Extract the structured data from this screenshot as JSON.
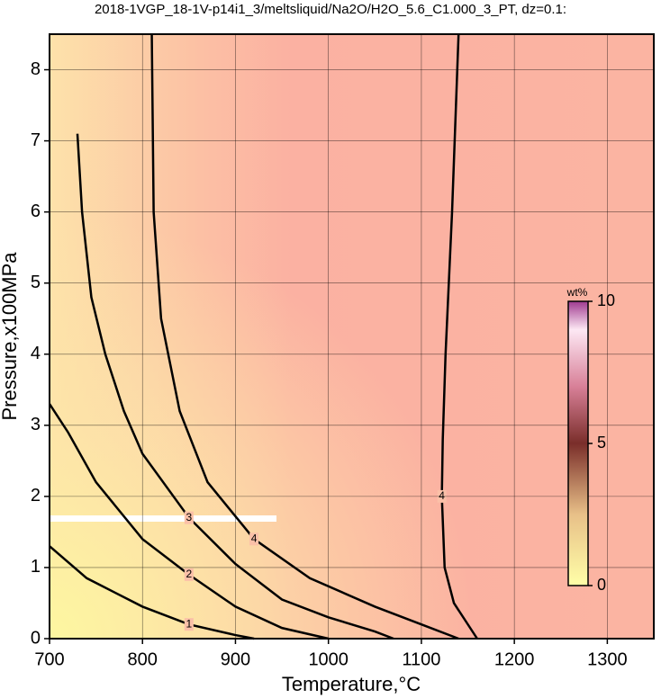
{
  "chart_data": {
    "type": "contour",
    "title": "2018-1VGP_18-1V-p14i1_3/meltsliquid/Na2O/H2O_5.6_C1.000_3_PT, dz=0.1:",
    "xlabel": "Temperature,°C",
    "ylabel": "Pressure,x100MPa",
    "xlim": [
      700,
      1350
    ],
    "ylim": [
      0,
      8.5
    ],
    "xticks": [
      700,
      800,
      900,
      1000,
      1100,
      1200,
      1300
    ],
    "yticks": [
      0,
      1,
      2,
      3,
      4,
      5,
      6,
      7,
      8
    ],
    "grid": true,
    "contours": [
      {
        "level": 1,
        "color": "#000000",
        "x": [
          700,
          740,
          800,
          850,
          900,
          920
        ],
        "y": [
          1.3,
          0.85,
          0.45,
          0.2,
          0.05,
          0
        ]
      },
      {
        "level": 2,
        "color": "#000000",
        "x": [
          700,
          720,
          750,
          800,
          850,
          900,
          950,
          1000
        ],
        "y": [
          3.3,
          2.9,
          2.2,
          1.4,
          0.9,
          0.45,
          0.15,
          0
        ]
      },
      {
        "level": 3,
        "color": "#000000",
        "x": [
          730,
          735,
          745,
          760,
          780,
          800,
          850,
          900,
          950,
          1000,
          1050,
          1070
        ],
        "y": [
          7.1,
          6,
          4.8,
          4,
          3.2,
          2.6,
          1.7,
          1.05,
          0.55,
          0.3,
          0.1,
          0
        ]
      },
      {
        "level": 4,
        "color": "#000000",
        "x": [
          810,
          812,
          820,
          840,
          870,
          920,
          980,
          1050,
          1100,
          1140
        ],
        "y": [
          8.5,
          6,
          4.5,
          3.2,
          2.2,
          1.4,
          0.85,
          0.45,
          0.2,
          0
        ]
      },
      {
        "level": 4,
        "color": "#000000",
        "x": [
          1140,
          1133,
          1126,
          1123,
          1122,
          1125,
          1135,
          1160
        ],
        "y": [
          8.5,
          6,
          4,
          2.8,
          2,
          1,
          0.5,
          0
        ]
      }
    ],
    "colorbar": {
      "label": "wt%",
      "lim": [
        0,
        10
      ],
      "ticks": [
        0,
        5,
        10
      ]
    }
  }
}
